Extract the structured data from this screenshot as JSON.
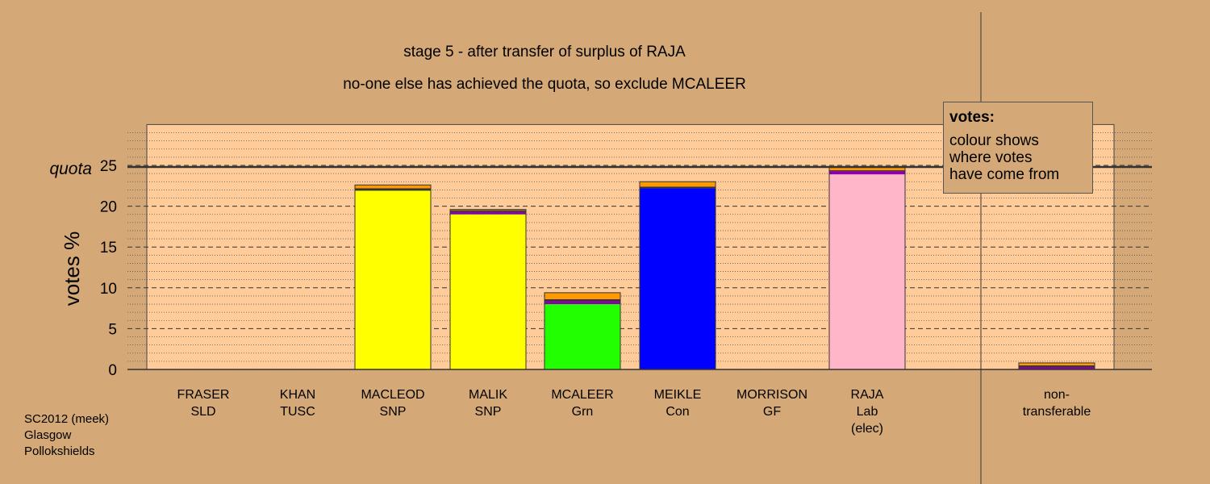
{
  "footer": [
    "SC2012 (meek)",
    "Glasgow",
    "Pollokshields"
  ],
  "legend": {
    "title": "votes:",
    "lines": [
      "colour shows",
      "where votes",
      "have come from"
    ]
  },
  "chart_data": {
    "type": "bar",
    "stacked": true,
    "title": "stage 5 - after transfer of surplus of RAJA",
    "subtitle": "no-one else has achieved the quota, so exclude MCALEER",
    "ylabel": "votes %",
    "quota_label": "quota",
    "quota": 24.8,
    "ylim": [
      0,
      30
    ],
    "yticks": [
      0,
      5,
      10,
      15,
      20,
      25
    ],
    "grid": true,
    "legend_placement": "top-right",
    "categories": [
      {
        "name": "FRASER",
        "party": "SLD",
        "note": ""
      },
      {
        "name": "KHAN",
        "party": "TUSC",
        "note": ""
      },
      {
        "name": "MACLEOD",
        "party": "SNP",
        "note": ""
      },
      {
        "name": "MALIK",
        "party": "SNP",
        "note": ""
      },
      {
        "name": "MCALEER",
        "party": "Grn",
        "note": ""
      },
      {
        "name": "MEIKLE",
        "party": "Con",
        "note": ""
      },
      {
        "name": "MORRISON",
        "party": "GF",
        "note": ""
      },
      {
        "name": "RAJA",
        "party": "Lab",
        "note": "(elec)"
      },
      {
        "name": "non-",
        "party": "transferable",
        "note": ""
      }
    ],
    "stacks": [
      [],
      [],
      [
        {
          "v": 21.9,
          "c": "#ffff00"
        },
        {
          "v": 0.3,
          "c": "#333333"
        },
        {
          "v": 0.4,
          "c": "#ff9900"
        }
      ],
      [
        {
          "v": 19.0,
          "c": "#ffff00"
        },
        {
          "v": 0.3,
          "c": "#8800aa"
        },
        {
          "v": 0.2,
          "c": "#333333"
        },
        {
          "v": 0.1,
          "c": "#ff9900"
        }
      ],
      [
        {
          "v": 8.0,
          "c": "#22ff00"
        },
        {
          "v": 0.4,
          "c": "#8800aa"
        },
        {
          "v": 0.2,
          "c": "#333333"
        },
        {
          "v": 0.8,
          "c": "#ff9900"
        }
      ],
      [
        {
          "v": 22.2,
          "c": "#0000ff"
        },
        {
          "v": 0.2,
          "c": "#333333"
        },
        {
          "v": 0.6,
          "c": "#ff9900"
        }
      ],
      [],
      [
        {
          "v": 23.9,
          "c": "#ffb6c8"
        },
        {
          "v": 0.4,
          "c": "#8800aa"
        },
        {
          "v": 0.1,
          "c": "#333333"
        },
        {
          "v": 0.4,
          "c": "#ff9900"
        }
      ],
      [
        {
          "v": 0.3,
          "c": "#8800aa"
        },
        {
          "v": 0.2,
          "c": "#333333"
        },
        {
          "v": 0.3,
          "c": "#ff9900"
        }
      ]
    ],
    "colors": {
      "background": "#d4a977",
      "plot_panel": "#ffcc99",
      "SNP": "#ffff00",
      "Grn": "#22ff00",
      "Con": "#0000ff",
      "Lab": "#ffb6c8"
    }
  }
}
